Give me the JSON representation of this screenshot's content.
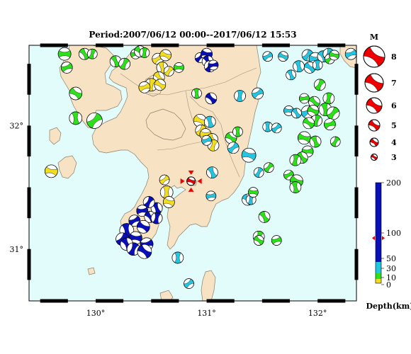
{
  "title": "Period:2007/06/12 00:00--2017/06/12 15:53",
  "axes": {
    "lon_ticks": [
      {
        "lon": 130,
        "label": "130°"
      },
      {
        "lon": 131,
        "label": "131°"
      },
      {
        "lon": 132,
        "label": "132°"
      }
    ],
    "lat_ticks": [
      {
        "lat": 32,
        "label": "32°"
      },
      {
        "lat": 31,
        "label": "31°"
      }
    ],
    "lon_range": [
      129.4,
      132.35
    ],
    "lat_range": [
      30.58,
      32.65
    ]
  },
  "colors": {
    "sea": "#e2fbfb",
    "land": "#f7e2c3",
    "coast": "#8a7f6a",
    "frame": "#000000",
    "depth_shallow": "#f2dc1e",
    "depth_mid": "#22c6e0",
    "depth_deep": "#0a10b8",
    "green": "#2ce01a",
    "legend_red": "#ee0000"
  },
  "magnitude_legend": {
    "title": "M",
    "items": [
      "8",
      "7",
      "6",
      "5",
      "4",
      "3"
    ]
  },
  "depth_scale": {
    "labels": [
      "200",
      "100",
      "50",
      "30",
      "10",
      "0"
    ],
    "unit": "Depth(km)",
    "marker_value": 90
  },
  "main_event": {
    "lon": 130.86,
    "lat": 31.55,
    "color": "#ee0000"
  },
  "events": [
    {
      "lon": 129.72,
      "lat": 32.58,
      "c": "green",
      "s": 9
    },
    {
      "lon": 129.9,
      "lat": 32.58,
      "c": "green",
      "s": 8
    },
    {
      "lon": 129.97,
      "lat": 32.58,
      "c": "green",
      "s": 7
    },
    {
      "lon": 129.74,
      "lat": 32.47,
      "c": "green",
      "s": 8
    },
    {
      "lon": 129.82,
      "lat": 32.26,
      "c": "green",
      "s": 9
    },
    {
      "lon": 129.82,
      "lat": 32.06,
      "c": "green",
      "s": 9
    },
    {
      "lon": 129.99,
      "lat": 32.04,
      "c": "green",
      "s": 11
    },
    {
      "lon": 129.6,
      "lat": 31.63,
      "c": "yellow",
      "s": 9
    },
    {
      "lon": 130.18,
      "lat": 32.52,
      "c": "green",
      "s": 8
    },
    {
      "lon": 130.26,
      "lat": 32.5,
      "c": "green",
      "s": 8
    },
    {
      "lon": 130.36,
      "lat": 32.58,
      "c": "green",
      "s": 7
    },
    {
      "lon": 130.4,
      "lat": 32.6,
      "c": "green",
      "s": 8
    },
    {
      "lon": 130.44,
      "lat": 32.59,
      "c": "green",
      "s": 7
    },
    {
      "lon": 130.56,
      "lat": 32.54,
      "c": "yellow",
      "s": 8
    },
    {
      "lon": 130.63,
      "lat": 32.57,
      "c": "yellow",
      "s": 8
    },
    {
      "lon": 130.6,
      "lat": 32.47,
      "c": "yellow",
      "s": 8
    },
    {
      "lon": 130.66,
      "lat": 32.44,
      "c": "yellow",
      "s": 7
    },
    {
      "lon": 130.75,
      "lat": 32.47,
      "c": "green",
      "s": 7
    },
    {
      "lon": 130.57,
      "lat": 32.39,
      "c": "yellow",
      "s": 8
    },
    {
      "lon": 130.5,
      "lat": 32.33,
      "c": "yellow",
      "s": 9
    },
    {
      "lon": 130.44,
      "lat": 32.31,
      "c": "yellow",
      "s": 8
    },
    {
      "lon": 130.58,
      "lat": 32.33,
      "c": "yellow",
      "s": 8
    },
    {
      "lon": 130.91,
      "lat": 32.26,
      "c": "green",
      "s": 7
    },
    {
      "lon": 130.94,
      "lat": 32.55,
      "c": "deep",
      "s": 7
    },
    {
      "lon": 131.0,
      "lat": 32.58,
      "c": "deep",
      "s": 8
    },
    {
      "lon": 131.01,
      "lat": 32.52,
      "c": "deep",
      "s": 8
    },
    {
      "lon": 131.03,
      "lat": 32.48,
      "c": "deep",
      "s": 8
    },
    {
      "lon": 131.06,
      "lat": 32.49,
      "c": "deep",
      "s": 7
    },
    {
      "lon": 131.04,
      "lat": 32.22,
      "c": "deep",
      "s": 8
    },
    {
      "lon": 131.3,
      "lat": 32.24,
      "c": "mid",
      "s": 8
    },
    {
      "lon": 131.46,
      "lat": 32.26,
      "c": "mid",
      "s": 8
    },
    {
      "lon": 130.94,
      "lat": 32.04,
      "c": "yellow",
      "s": 9
    },
    {
      "lon": 131.03,
      "lat": 32.03,
      "c": "mid",
      "s": 8
    },
    {
      "lon": 130.95,
      "lat": 31.96,
      "c": "yellow",
      "s": 8
    },
    {
      "lon": 130.99,
      "lat": 31.93,
      "c": "yellow",
      "s": 8
    },
    {
      "lon": 131.05,
      "lat": 31.89,
      "c": "yellow",
      "s": 8
    },
    {
      "lon": 131.06,
      "lat": 31.84,
      "c": "yellow",
      "s": 8
    },
    {
      "lon": 131.0,
      "lat": 31.88,
      "c": "mid",
      "s": 7
    },
    {
      "lon": 131.22,
      "lat": 31.9,
      "c": "green",
      "s": 8
    },
    {
      "lon": 131.28,
      "lat": 31.95,
      "c": "green",
      "s": 7
    },
    {
      "lon": 131.24,
      "lat": 31.82,
      "c": "mid",
      "s": 8
    },
    {
      "lon": 131.38,
      "lat": 31.76,
      "c": "mid",
      "s": 10
    },
    {
      "lon": 131.05,
      "lat": 31.62,
      "c": "mid",
      "s": 8
    },
    {
      "lon": 131.47,
      "lat": 31.62,
      "c": "mid",
      "s": 7
    },
    {
      "lon": 131.04,
      "lat": 31.43,
      "c": "mid",
      "s": 7
    },
    {
      "lon": 131.37,
      "lat": 31.4,
      "c": "mid",
      "s": 8
    },
    {
      "lon": 131.4,
      "lat": 31.4,
      "c": "mid",
      "s": 7
    },
    {
      "lon": 131.55,
      "lat": 32.56,
      "c": "mid",
      "s": 7
    },
    {
      "lon": 131.69,
      "lat": 32.56,
      "c": "mid",
      "s": 7
    },
    {
      "lon": 131.83,
      "lat": 32.48,
      "c": "mid",
      "s": 8
    },
    {
      "lon": 131.91,
      "lat": 32.57,
      "c": "mid",
      "s": 8
    },
    {
      "lon": 131.98,
      "lat": 32.54,
      "c": "mid",
      "s": 9
    },
    {
      "lon": 132.05,
      "lat": 32.56,
      "c": "mid",
      "s": 8
    },
    {
      "lon": 132.1,
      "lat": 32.58,
      "c": "mid",
      "s": 8
    },
    {
      "lon": 132.3,
      "lat": 32.58,
      "c": "mid",
      "s": 8
    },
    {
      "lon": 131.93,
      "lat": 32.47,
      "c": "mid",
      "s": 8
    },
    {
      "lon": 132.0,
      "lat": 32.49,
      "c": "mid",
      "s": 7
    },
    {
      "lon": 132.11,
      "lat": 32.54,
      "c": "green",
      "s": 7
    },
    {
      "lon": 132.15,
      "lat": 32.57,
      "c": "green",
      "s": 7
    },
    {
      "lon": 131.76,
      "lat": 32.41,
      "c": "mid",
      "s": 7
    },
    {
      "lon": 132.02,
      "lat": 32.33,
      "c": "green",
      "s": 8
    },
    {
      "lon": 131.88,
      "lat": 32.22,
      "c": "green",
      "s": 7
    },
    {
      "lon": 131.97,
      "lat": 32.19,
      "c": "green",
      "s": 8
    },
    {
      "lon": 132.1,
      "lat": 32.22,
      "c": "green",
      "s": 8
    },
    {
      "lon": 131.91,
      "lat": 32.11,
      "c": "mid",
      "s": 9
    },
    {
      "lon": 131.96,
      "lat": 32.12,
      "c": "green",
      "s": 8
    },
    {
      "lon": 132.07,
      "lat": 32.13,
      "c": "green",
      "s": 9
    },
    {
      "lon": 132.14,
      "lat": 32.1,
      "c": "green",
      "s": 9
    },
    {
      "lon": 131.74,
      "lat": 32.12,
      "c": "mid",
      "s": 7
    },
    {
      "lon": 131.81,
      "lat": 32.1,
      "c": "mid",
      "s": 7
    },
    {
      "lon": 131.99,
      "lat": 32.04,
      "c": "green",
      "s": 8
    },
    {
      "lon": 132.11,
      "lat": 32.01,
      "c": "green",
      "s": 8
    },
    {
      "lon": 131.92,
      "lat": 32.02,
      "c": "green",
      "s": 8
    },
    {
      "lon": 131.55,
      "lat": 31.99,
      "c": "mid",
      "s": 7
    },
    {
      "lon": 131.63,
      "lat": 31.98,
      "c": "mid",
      "s": 7
    },
    {
      "lon": 131.88,
      "lat": 31.9,
      "c": "green",
      "s": 9
    },
    {
      "lon": 131.98,
      "lat": 31.87,
      "c": "green",
      "s": 8
    },
    {
      "lon": 132.16,
      "lat": 31.87,
      "c": "green",
      "s": 7
    },
    {
      "lon": 131.91,
      "lat": 31.79,
      "c": "green",
      "s": 8
    },
    {
      "lon": 131.86,
      "lat": 31.74,
      "c": "green",
      "s": 8
    },
    {
      "lon": 131.8,
      "lat": 31.72,
      "c": "green",
      "s": 8
    },
    {
      "lon": 131.74,
      "lat": 31.6,
      "c": "green",
      "s": 7
    },
    {
      "lon": 131.81,
      "lat": 31.55,
      "c": "green",
      "s": 9
    },
    {
      "lon": 131.8,
      "lat": 31.5,
      "c": "green",
      "s": 8
    },
    {
      "lon": 131.56,
      "lat": 31.66,
      "c": "green",
      "s": 7
    },
    {
      "lon": 131.42,
      "lat": 31.46,
      "c": "green",
      "s": 7
    },
    {
      "lon": 131.52,
      "lat": 31.26,
      "c": "green",
      "s": 8
    },
    {
      "lon": 131.47,
      "lat": 31.1,
      "c": "green",
      "s": 8
    },
    {
      "lon": 131.63,
      "lat": 31.07,
      "c": "green",
      "s": 7
    },
    {
      "lon": 131.47,
      "lat": 31.07,
      "c": "green",
      "s": 7
    },
    {
      "lon": 130.64,
      "lat": 31.46,
      "c": "yellow",
      "s": 9
    },
    {
      "lon": 130.62,
      "lat": 31.56,
      "c": "yellow",
      "s": 7
    },
    {
      "lon": 130.66,
      "lat": 31.38,
      "c": "yellow",
      "s": 8
    },
    {
      "lon": 130.55,
      "lat": 31.33,
      "c": "deep",
      "s": 8
    },
    {
      "lon": 130.48,
      "lat": 31.38,
      "c": "deep",
      "s": 8
    },
    {
      "lon": 130.42,
      "lat": 31.31,
      "c": "deep",
      "s": 8
    },
    {
      "lon": 130.49,
      "lat": 31.26,
      "c": "deep",
      "s": 8
    },
    {
      "lon": 130.55,
      "lat": 31.25,
      "c": "deep",
      "s": 8
    },
    {
      "lon": 130.35,
      "lat": 31.23,
      "c": "deep",
      "s": 8
    },
    {
      "lon": 130.43,
      "lat": 31.18,
      "c": "deep",
      "s": 9
    },
    {
      "lon": 130.28,
      "lat": 31.15,
      "c": "deep",
      "s": 10
    },
    {
      "lon": 130.24,
      "lat": 31.08,
      "c": "deep",
      "s": 9
    },
    {
      "lon": 130.36,
      "lat": 31.09,
      "c": "deep",
      "s": 9
    },
    {
      "lon": 130.28,
      "lat": 31.04,
      "c": "deep",
      "s": 9
    },
    {
      "lon": 130.34,
      "lat": 31.0,
      "c": "deep",
      "s": 9
    },
    {
      "lon": 130.46,
      "lat": 31.04,
      "c": "deep",
      "s": 9
    },
    {
      "lon": 130.44,
      "lat": 30.98,
      "c": "deep",
      "s": 10
    },
    {
      "lon": 130.74,
      "lat": 30.93,
      "c": "mid",
      "s": 8
    },
    {
      "lon": 130.84,
      "lat": 30.72,
      "c": "mid",
      "s": 7
    }
  ]
}
